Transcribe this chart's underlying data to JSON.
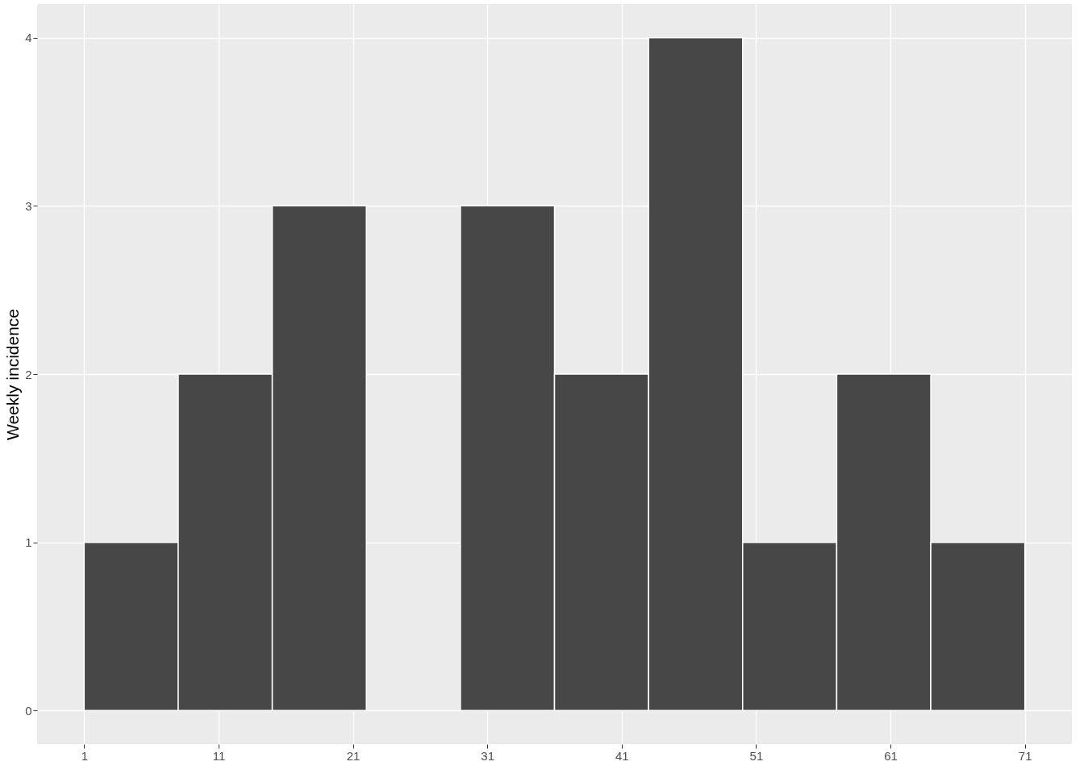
{
  "chart_data": {
    "type": "histogram",
    "ylabel": "Weekly incidence",
    "bins": [
      1,
      8,
      15,
      22,
      29,
      36,
      43,
      50,
      57,
      64,
      71
    ],
    "values": [
      1,
      2,
      3,
      0,
      3,
      2,
      4,
      1,
      2,
      1
    ],
    "color": "#474747",
    "xlim": [
      -2.5,
      74.5
    ],
    "xticks": [
      1,
      11,
      21,
      31,
      41,
      51,
      61,
      71
    ],
    "ylim": [
      -0.2,
      4.2
    ],
    "yticks": [
      0,
      1,
      2,
      3,
      4
    ],
    "grid": true
  }
}
